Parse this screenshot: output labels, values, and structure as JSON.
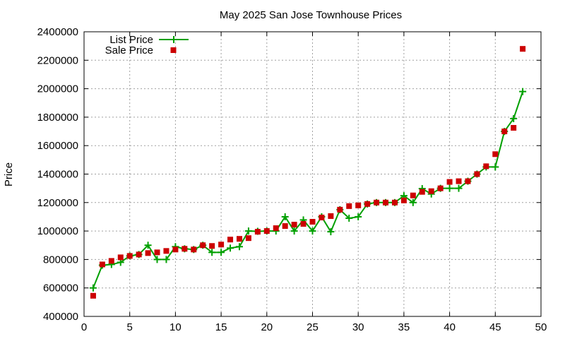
{
  "chart_data": {
    "type": "scatter",
    "title": "May 2025 San Jose Townhouse Prices",
    "xlabel": "",
    "ylabel": "Price",
    "xlim": [
      0,
      50
    ],
    "ylim": [
      400000,
      2400000
    ],
    "x_ticks": [
      "0",
      "5",
      "10",
      "15",
      "20",
      "25",
      "30",
      "35",
      "40",
      "45",
      "50"
    ],
    "y_ticks": [
      "400000",
      "600000",
      "800000",
      "1000000",
      "1200000",
      "1400000",
      "1600000",
      "1800000",
      "2000000",
      "2200000",
      "2400000"
    ],
    "grid": true,
    "legend_position": "top-left",
    "series": [
      {
        "name": "List Price",
        "style": "line-points",
        "color": "#00a000",
        "x": [
          1,
          2,
          3,
          4,
          5,
          6,
          7,
          8,
          9,
          10,
          11,
          12,
          13,
          14,
          15,
          16,
          17,
          18,
          19,
          20,
          21,
          22,
          23,
          24,
          25,
          26,
          27,
          28,
          29,
          30,
          31,
          32,
          33,
          34,
          35,
          36,
          37,
          38,
          39,
          40,
          41,
          42,
          43,
          44,
          45,
          46,
          47,
          48
        ],
        "values": [
          600000,
          760000,
          765000,
          780000,
          825000,
          835000,
          900000,
          800000,
          800000,
          890000,
          875000,
          870000,
          900000,
          850000,
          850000,
          880000,
          890000,
          1000000,
          998000,
          1000000,
          1000000,
          1100000,
          1000000,
          1078000,
          1000000,
          1100000,
          995000,
          1150000,
          1090000,
          1100000,
          1190000,
          1200000,
          1200000,
          1200000,
          1248000,
          1200000,
          1298000,
          1260000,
          1300000,
          1300000,
          1300000,
          1350000,
          1400000,
          1450000,
          1450000,
          1700000,
          1790000,
          1980000
        ]
      },
      {
        "name": "Sale Price",
        "style": "points",
        "color": "#cc0000",
        "x": [
          1,
          2,
          3,
          4,
          5,
          6,
          7,
          8,
          9,
          10,
          11,
          12,
          13,
          14,
          15,
          16,
          17,
          18,
          19,
          20,
          21,
          22,
          23,
          24,
          25,
          26,
          27,
          28,
          29,
          30,
          31,
          32,
          33,
          34,
          35,
          36,
          37,
          38,
          39,
          40,
          41,
          42,
          43,
          44,
          45,
          46,
          47,
          48
        ],
        "values": [
          545000,
          765000,
          790000,
          815000,
          825000,
          835000,
          845000,
          850000,
          860000,
          870000,
          875000,
          870000,
          900000,
          895000,
          905000,
          940000,
          945000,
          950000,
          995000,
          1000000,
          1020000,
          1035000,
          1045000,
          1050000,
          1065000,
          1095000,
          1105000,
          1150000,
          1175000,
          1180000,
          1190000,
          1200000,
          1200000,
          1200000,
          1215000,
          1250000,
          1275000,
          1280000,
          1300000,
          1345000,
          1350000,
          1350000,
          1400000,
          1455000,
          1540000,
          1700000,
          1725000,
          2280000
        ]
      }
    ]
  }
}
